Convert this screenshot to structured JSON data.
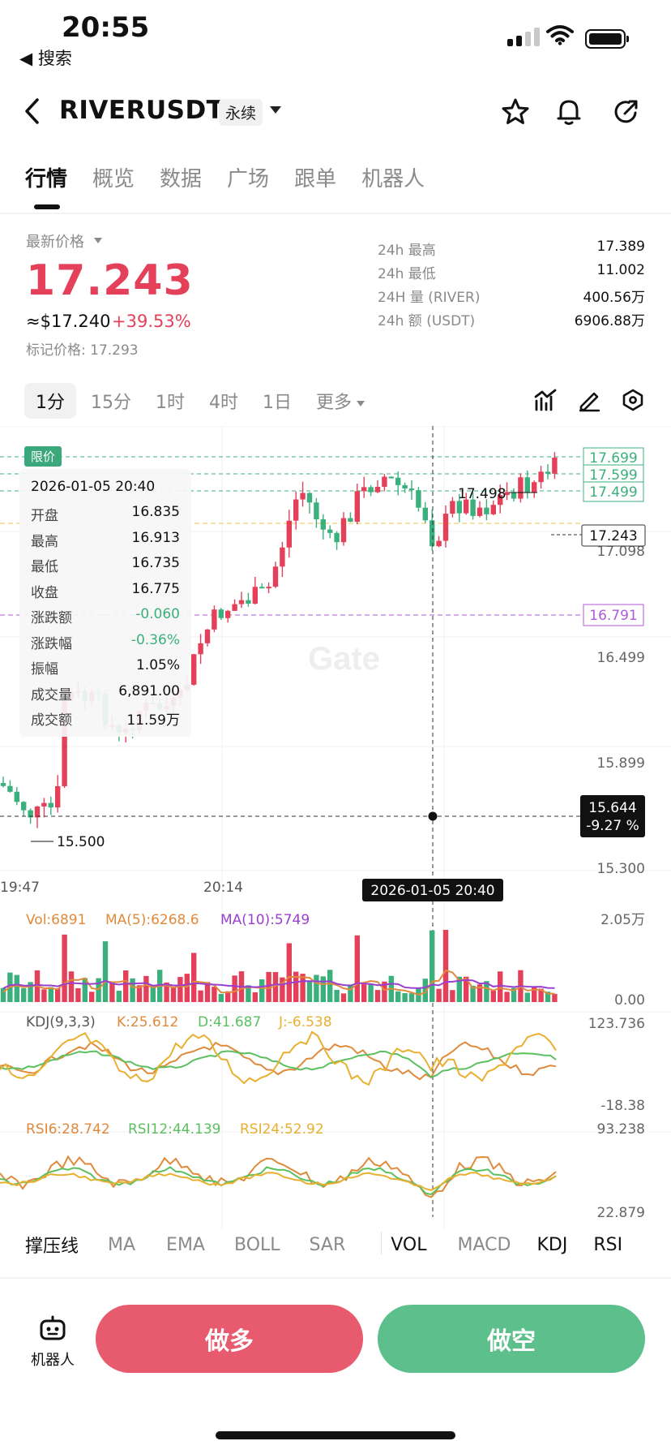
{
  "status_bar": {
    "time": "20:55",
    "back_app": "◀ 搜索"
  },
  "header": {
    "pair": "RIVERUSDT",
    "contract_type": "永续"
  },
  "tabs": [
    {
      "label": "行情",
      "active": true
    },
    {
      "label": "概览"
    },
    {
      "label": "数据"
    },
    {
      "label": "广场"
    },
    {
      "label": "跟单"
    },
    {
      "label": "机器人"
    }
  ],
  "price": {
    "label": "最新价格",
    "last": "17.243",
    "usd": "≈$17.240",
    "change_pct": "+39.53%",
    "mark_label": "标记价格: 17.293"
  },
  "stats": [
    {
      "label": "24h  最高",
      "value": "17.389"
    },
    {
      "label": "24h  最低",
      "value": "11.002"
    },
    {
      "label": "24H  量 (RIVER)",
      "value": "400.56万"
    },
    {
      "label": "24h  额 (USDT)",
      "value": "6906.88万"
    }
  ],
  "intervals": [
    {
      "label": "1分",
      "active": true
    },
    {
      "label": "15分"
    },
    {
      "label": "1时"
    },
    {
      "label": "4时"
    },
    {
      "label": "1日"
    },
    {
      "label": "更多"
    }
  ],
  "chart": {
    "watermark": "Gate",
    "limit_tag": "限价",
    "y_labels": [
      "17.098",
      "16.499",
      "15.899",
      "15.300"
    ],
    "x_labels": [
      "19:47",
      "20:14"
    ],
    "crosshair_time": "2026-01-05 20:40",
    "crosshair_price": "15.644",
    "crosshair_pct": "-9.27 %",
    "current_price_tag": "17.243",
    "order_tags": [
      "17.699",
      "17.599",
      "17.499"
    ],
    "purple_tag": "16.791",
    "high_annotation": "17.498",
    "low_annotation": "15.500",
    "tooltip": {
      "title": "2026-01-05 20:40",
      "rows": [
        {
          "k": "开盘",
          "v": "16.835"
        },
        {
          "k": "最高",
          "v": "16.913"
        },
        {
          "k": "最低",
          "v": "16.735"
        },
        {
          "k": "收盘",
          "v": "16.775"
        },
        {
          "k": "涨跌额",
          "v": "-0.060",
          "color": "#3bb07c"
        },
        {
          "k": "涨跌幅",
          "v": "-0.36%",
          "color": "#3bb07c"
        },
        {
          "k": "振幅",
          "v": "1.05%"
        },
        {
          "k": "成交量",
          "v": "6,891.00"
        },
        {
          "k": "成交额",
          "v": "11.59万"
        }
      ]
    }
  },
  "volume": {
    "vol": "Vol:6891",
    "ma5": "MA(5):6268.6",
    "ma10": "MA(10):5749",
    "top": "2.05万",
    "bottom": "0.00"
  },
  "kdj": {
    "label": "KDJ(9,3,3)",
    "k": "K:25.612",
    "d": "D:41.687",
    "j": "J:-6.538",
    "top": "123.736",
    "bottom": "-18.38"
  },
  "rsi": {
    "r6": "RSI6:28.742",
    "r12": "RSI12:44.139",
    "r24": "RSI24:52.92",
    "top": "93.238",
    "bottom": "22.879"
  },
  "indicators": [
    "撑压线",
    "MA",
    "EMA",
    "BOLL",
    "SAR",
    "VOL",
    "MACD",
    "KDJ",
    "RSI"
  ],
  "bottom": {
    "robot": "机器人",
    "long": "做多",
    "short": "做空"
  },
  "colors": {
    "up": "#e5405a",
    "down": "#3bb07c",
    "accent_green": "#5cbf8c",
    "accent_red": "#e85a6d"
  }
}
